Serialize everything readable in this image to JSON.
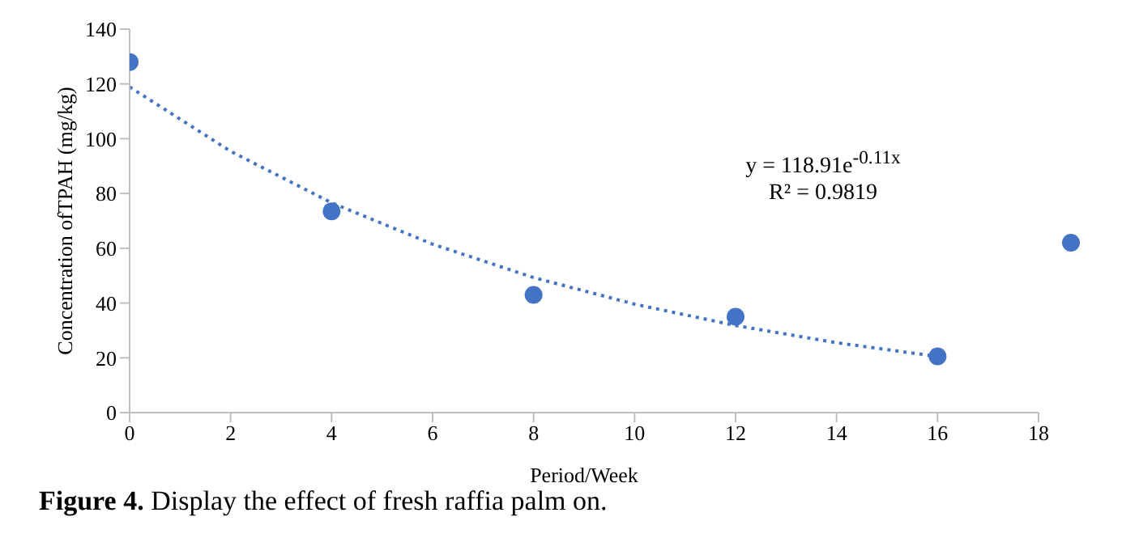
{
  "chart_data": {
    "type": "scatter",
    "xlabel": "Period/Week",
    "ylabel": "Concentration ofTPAH (mg/kg)",
    "xlim": [
      0,
      18
    ],
    "xticks": [
      0,
      2,
      4,
      6,
      8,
      10,
      12,
      14,
      16,
      18
    ],
    "ylim": [
      0,
      140
    ],
    "yticks": [
      0,
      20,
      40,
      60,
      80,
      100,
      120,
      140
    ],
    "marker": "circle",
    "series": [
      {
        "color": "#4472c4",
        "x": [
          0,
          4,
          8,
          12,
          16
        ],
        "values": [
          128,
          73.5,
          43,
          35,
          20.5
        ]
      },
      {
        "type": "line",
        "color": "#4472c4",
        "line_style": "dotted",
        "marker": "none",
        "x": [
          0,
          2,
          4,
          6,
          8,
          10,
          12,
          14,
          16
        ],
        "values": [
          118.9,
          95.4,
          76.6,
          61.5,
          49.3,
          39.6,
          31.8,
          25.5,
          20.5
        ]
      }
    ],
    "annotations": [
      "y = 118.91e$^{-0.11x}$",
      "R² = 0.9819",
      "Figure 4. Display the effect of fresh raffia palm on."
    ]
  }
}
